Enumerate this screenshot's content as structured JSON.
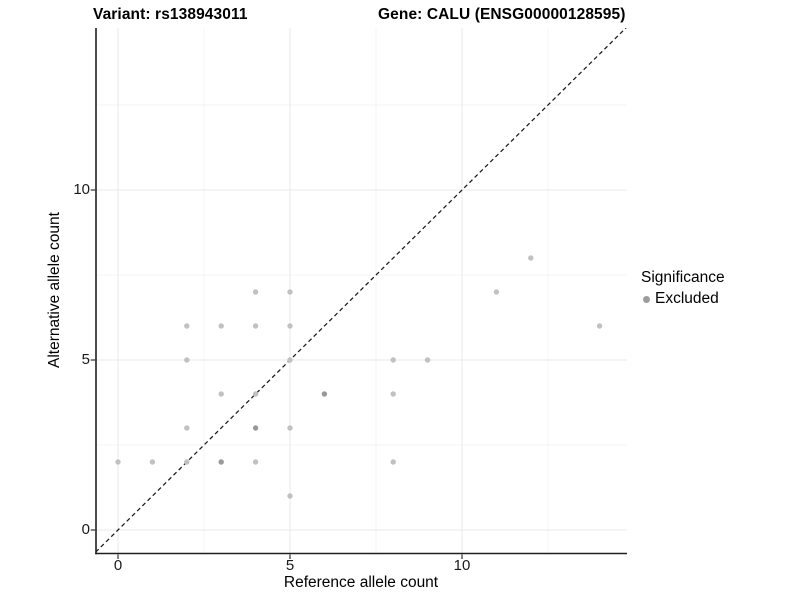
{
  "chart_data": {
    "type": "scatter",
    "title_variant": "Variant: rs138943011",
    "title_gene": "Gene: CALU (ENSG00000128595)",
    "xlabel": "Reference allele count",
    "ylabel": "Alternative allele count",
    "x_ticks": [
      0,
      5,
      10
    ],
    "y_ticks": [
      0,
      5,
      10
    ],
    "x_minor_gridlines": [
      2.5,
      7.5,
      12.5
    ],
    "y_minor_gridlines": [
      2.5,
      7.5,
      12.5
    ],
    "xlim": [
      -0.65,
      14.8
    ],
    "ylim": [
      -0.68,
      14.8
    ],
    "grid": "major and minor, light gray on white panel",
    "identity_line": {
      "style": "dashed",
      "equation": "y = x"
    },
    "legend": {
      "title": "Significance",
      "position": "right",
      "items": [
        {
          "label": "Excluded",
          "color": "#9d9d9d"
        }
      ]
    },
    "colors": {
      "point": "#c1c1c1",
      "point_overlap": "#999999",
      "grid_major": "#e8e8e8",
      "grid_minor": "#f3f3f3",
      "axis": "#1f1f1f",
      "identity_line": "#1a1a1a",
      "text": "#000000"
    },
    "points": [
      {
        "x": 0,
        "y": 2
      },
      {
        "x": 1,
        "y": 2
      },
      {
        "x": 2,
        "y": 2
      },
      {
        "x": 3,
        "y": 2,
        "overlap": true
      },
      {
        "x": 4,
        "y": 2
      },
      {
        "x": 8,
        "y": 2
      },
      {
        "x": 5,
        "y": 1
      },
      {
        "x": 2,
        "y": 3
      },
      {
        "x": 4,
        "y": 3,
        "overlap": true
      },
      {
        "x": 5,
        "y": 3
      },
      {
        "x": 3,
        "y": 4
      },
      {
        "x": 4,
        "y": 4
      },
      {
        "x": 6,
        "y": 4,
        "overlap": true
      },
      {
        "x": 8,
        "y": 4
      },
      {
        "x": 2,
        "y": 5
      },
      {
        "x": 5,
        "y": 5
      },
      {
        "x": 8,
        "y": 5
      },
      {
        "x": 9,
        "y": 5
      },
      {
        "x": 2,
        "y": 6
      },
      {
        "x": 3,
        "y": 6
      },
      {
        "x": 4,
        "y": 6
      },
      {
        "x": 5,
        "y": 6
      },
      {
        "x": 14,
        "y": 6
      },
      {
        "x": 4,
        "y": 7
      },
      {
        "x": 5,
        "y": 7
      },
      {
        "x": 11,
        "y": 7
      },
      {
        "x": 12,
        "y": 8
      }
    ]
  }
}
